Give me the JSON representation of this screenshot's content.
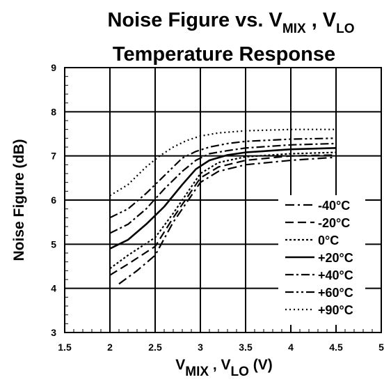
{
  "chart_data": {
    "type": "line",
    "title": {
      "line1_main": "Noise Figure vs. V",
      "line1_sub1": "MIX",
      "line1_sep": " , V",
      "line1_sub2": "LO",
      "line2": "Temperature Response"
    },
    "xlabel": {
      "main1": "V",
      "sub1": "MIX",
      "sep": " , V",
      "sub2": "LO",
      "units": " (V)"
    },
    "ylabel": "Noise Figure (dB)",
    "xlim": [
      1.5,
      5
    ],
    "ylim": [
      3,
      9
    ],
    "xticks": [
      "1.5",
      "2",
      "2.5",
      "3",
      "3.5",
      "4",
      "4.5",
      "5"
    ],
    "yticks": [
      "3",
      "4",
      "5",
      "6",
      "7",
      "8",
      "9"
    ],
    "grid": true,
    "legend_position": "bottom-right",
    "series": [
      {
        "name": "-40°C",
        "dash": "13,5,3,5",
        "x": [
          2.1,
          2.3,
          2.5,
          2.7,
          2.9,
          3.0,
          3.2,
          3.5,
          4.0,
          4.5
        ],
        "y": [
          4.1,
          4.4,
          4.75,
          5.5,
          6.1,
          6.4,
          6.65,
          6.8,
          6.9,
          6.97
        ]
      },
      {
        "name": "-20°C",
        "dash": "12,6",
        "x": [
          2.0,
          2.2,
          2.5,
          2.7,
          2.9,
          3.0,
          3.2,
          3.5,
          4.0,
          4.5
        ],
        "y": [
          4.3,
          4.55,
          4.95,
          5.6,
          6.2,
          6.5,
          6.75,
          6.9,
          7.0,
          7.02
        ]
      },
      {
        "name": "0°C",
        "dash": "3,3",
        "x": [
          2.0,
          2.2,
          2.5,
          2.7,
          2.9,
          3.0,
          3.2,
          3.5,
          4.0,
          4.5
        ],
        "y": [
          4.45,
          4.75,
          5.15,
          5.7,
          6.3,
          6.6,
          6.85,
          6.98,
          7.05,
          7.08
        ]
      },
      {
        "name": "+20°C",
        "dash": "",
        "x": [
          2.0,
          2.2,
          2.4,
          2.6,
          2.8,
          2.95,
          3.1,
          3.3,
          3.5,
          4.0,
          4.5
        ],
        "y": [
          4.9,
          5.1,
          5.45,
          5.85,
          6.35,
          6.7,
          6.9,
          7.02,
          7.08,
          7.15,
          7.18
        ]
      },
      {
        "name": "+40°C",
        "dash": "12,4,3,4",
        "x": [
          2.0,
          2.2,
          2.4,
          2.6,
          2.8,
          2.95,
          3.1,
          3.3,
          3.5,
          4.0,
          4.5
        ],
        "y": [
          5.25,
          5.45,
          5.8,
          6.25,
          6.65,
          6.9,
          7.05,
          7.12,
          7.18,
          7.25,
          7.28
        ]
      },
      {
        "name": "+60°C",
        "dash": "12,4,3,4,3,4",
        "x": [
          2.0,
          2.2,
          2.4,
          2.6,
          2.8,
          2.95,
          3.1,
          3.3,
          3.5,
          4.0,
          4.5
        ],
        "y": [
          5.6,
          5.8,
          6.15,
          6.55,
          6.95,
          7.1,
          7.2,
          7.28,
          7.33,
          7.38,
          7.4
        ]
      },
      {
        "name": "+90°C",
        "dash": "2,4",
        "x": [
          2.0,
          2.2,
          2.4,
          2.55,
          2.7,
          2.85,
          3.0,
          3.2,
          3.5,
          4.0,
          4.5
        ],
        "y": [
          6.1,
          6.35,
          6.75,
          7.0,
          7.2,
          7.35,
          7.45,
          7.52,
          7.57,
          7.6,
          7.6
        ]
      }
    ]
  }
}
